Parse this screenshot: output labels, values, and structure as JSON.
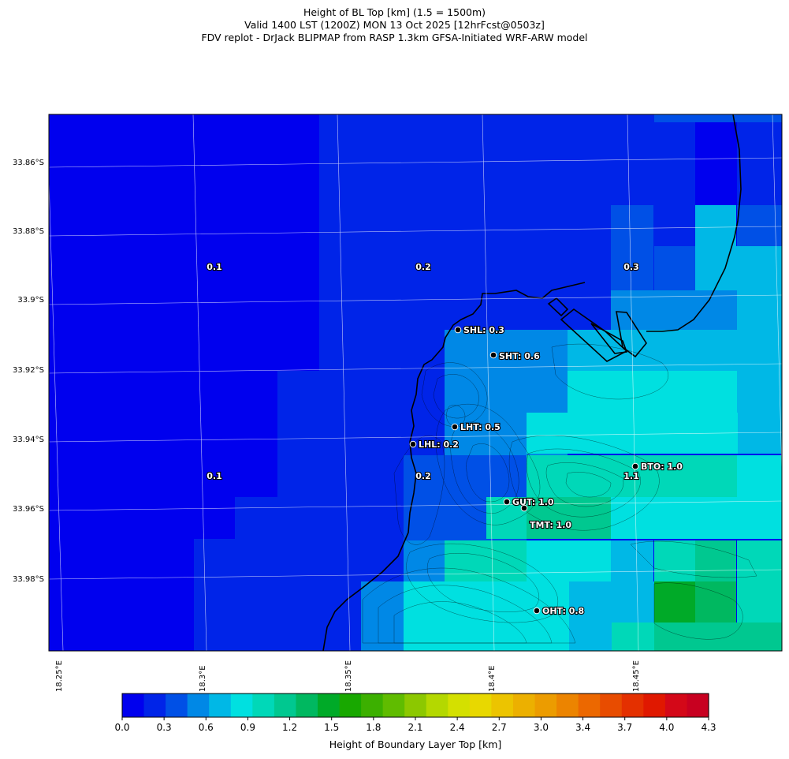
{
  "header": {
    "line1": "Height of BL Top [km] (1.5 = 1500m)",
    "line2": "Valid 1400 LST (1200Z) MON 13 Oct 2025 [12hrFcst@0503z]",
    "line3": "FDV replot - DrJack BLIPMAP from RASP 1.3km GFSA-Initiated WRF-ARW model"
  },
  "map": {
    "lat_labels": [
      "33.86°S",
      "33.88°S",
      "33.9°S",
      "33.92°S",
      "33.94°S",
      "33.96°S",
      "33.98°S"
    ],
    "lon_labels": [
      "18.25°E",
      "18.3°E",
      "18.35°E",
      "18.4°E",
      "18.45°E"
    ],
    "area_labels": [
      "0.1",
      "0.2",
      "0.3",
      "0.1",
      "0.2",
      "1.1"
    ],
    "stations": [
      {
        "label": "SHL: 0.3",
        "value": 0.3
      },
      {
        "label": "SHT: 0.6",
        "value": 0.6
      },
      {
        "label": "LHT: 0.5",
        "value": 0.5
      },
      {
        "label": "LHL: 0.2",
        "value": 0.2
      },
      {
        "label": "BTO: 1.0",
        "value": 1.0
      },
      {
        "label": "GUT: 1.0",
        "value": 1.0
      },
      {
        "label": "TMT: 1.0",
        "value": 1.0
      },
      {
        "label": "OHT: 0.8",
        "value": 0.8
      }
    ]
  },
  "colorbar": {
    "title": "Height of Boundary Layer Top [km]",
    "ticks": [
      "0.0",
      "0.3",
      "0.6",
      "0.9",
      "1.2",
      "1.5",
      "1.8",
      "2.1",
      "2.4",
      "2.7",
      "3.0",
      "3.4",
      "3.7",
      "4.0",
      "4.3"
    ],
    "colors": [
      "#0000ee",
      "#0024e8",
      "#0050e6",
      "#0088e6",
      "#00b8e6",
      "#00e0e0",
      "#00d8b8",
      "#00c890",
      "#00b860",
      "#00aa28",
      "#18a800",
      "#3cb000",
      "#60bc00",
      "#8cc800",
      "#b4d800",
      "#d4e000",
      "#e8d800",
      "#ecc400",
      "#ecb000",
      "#ec9c00",
      "#ec8400",
      "#ec6800",
      "#e84c00",
      "#e43000",
      "#e01800",
      "#d40818",
      "#c80020"
    ]
  }
}
